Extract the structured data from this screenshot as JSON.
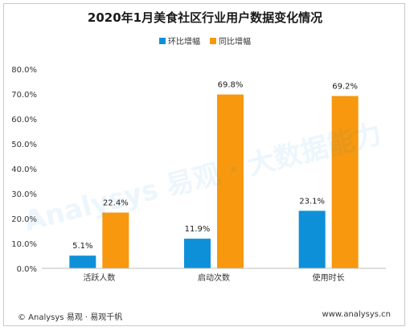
{
  "chart_data": {
    "type": "bar",
    "title": "2020年1月美食社区行业用户数据变化情况",
    "categories": [
      "活跃人数",
      "启动次数",
      "使用时长"
    ],
    "series": [
      {
        "name": "环比增幅",
        "values": [
          5.1,
          11.9,
          23.1
        ],
        "labels": [
          "5.1%",
          "11.9%",
          "23.1%"
        ],
        "color": "#0e90d8"
      },
      {
        "name": "同比增幅",
        "values": [
          22.4,
          69.8,
          69.2
        ],
        "labels": [
          "22.4%",
          "69.8%",
          "69.2%"
        ],
        "color": "#f7980e"
      }
    ],
    "ylim": [
      0,
      80
    ],
    "yticks": [
      0,
      10,
      20,
      30,
      40,
      50,
      60,
      70,
      80
    ],
    "yticklabels": [
      "0.0%",
      "10.0%",
      "20.0%",
      "30.0%",
      "40.0%",
      "50.0%",
      "60.0%",
      "70.0%",
      "80.0%"
    ],
    "legend_position": "top-center",
    "grid": false
  },
  "watermark": "Analysys 易观 · 大数据能力",
  "footer": {
    "source": "© Analysys 易观 · 易观千帆",
    "url": "www.analysys.cn"
  }
}
